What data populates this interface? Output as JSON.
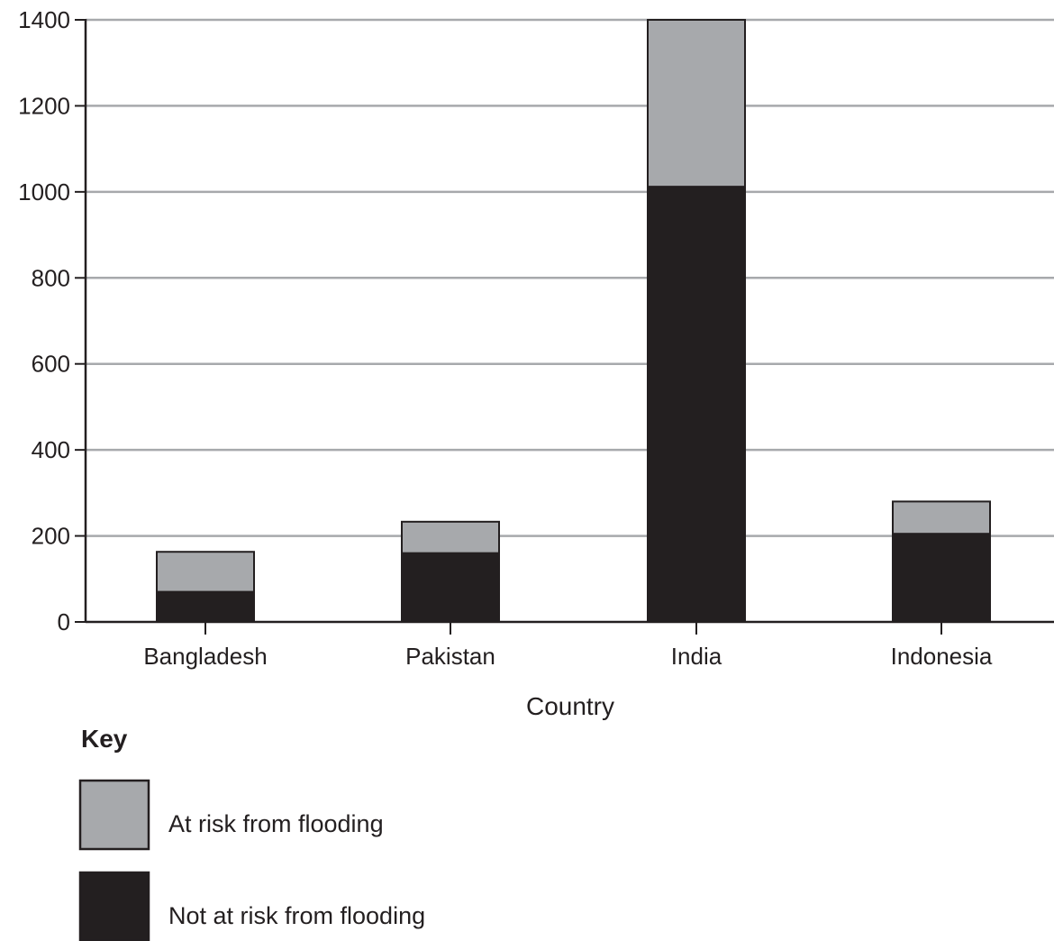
{
  "chart_data": {
    "type": "bar",
    "stacked": true,
    "categories": [
      "Bangladesh",
      "Pakistan",
      "India",
      "Indonesia"
    ],
    "series": [
      {
        "name": "Not at risk from flooding",
        "values": [
          70,
          160,
          1012,
          205
        ],
        "color": "#231f20"
      },
      {
        "name": "At risk from flooding",
        "values": [
          93,
          73,
          388,
          75
        ],
        "color": "#a7a9ac"
      }
    ],
    "title": "",
    "xlabel": "Country",
    "ylabel": "",
    "ylim": [
      0,
      1400
    ],
    "yticks": [
      0,
      200,
      400,
      600,
      800,
      1000,
      1200,
      1400
    ],
    "grid": true,
    "legend_title": "Key",
    "legend_placement": "bottom-left",
    "legend_order": [
      "At risk from flooding",
      "Not at risk from flooding"
    ]
  },
  "colors": {
    "gridline": "#a7a9ac",
    "axis": "#231f20",
    "bar_outline": "#231f20"
  }
}
